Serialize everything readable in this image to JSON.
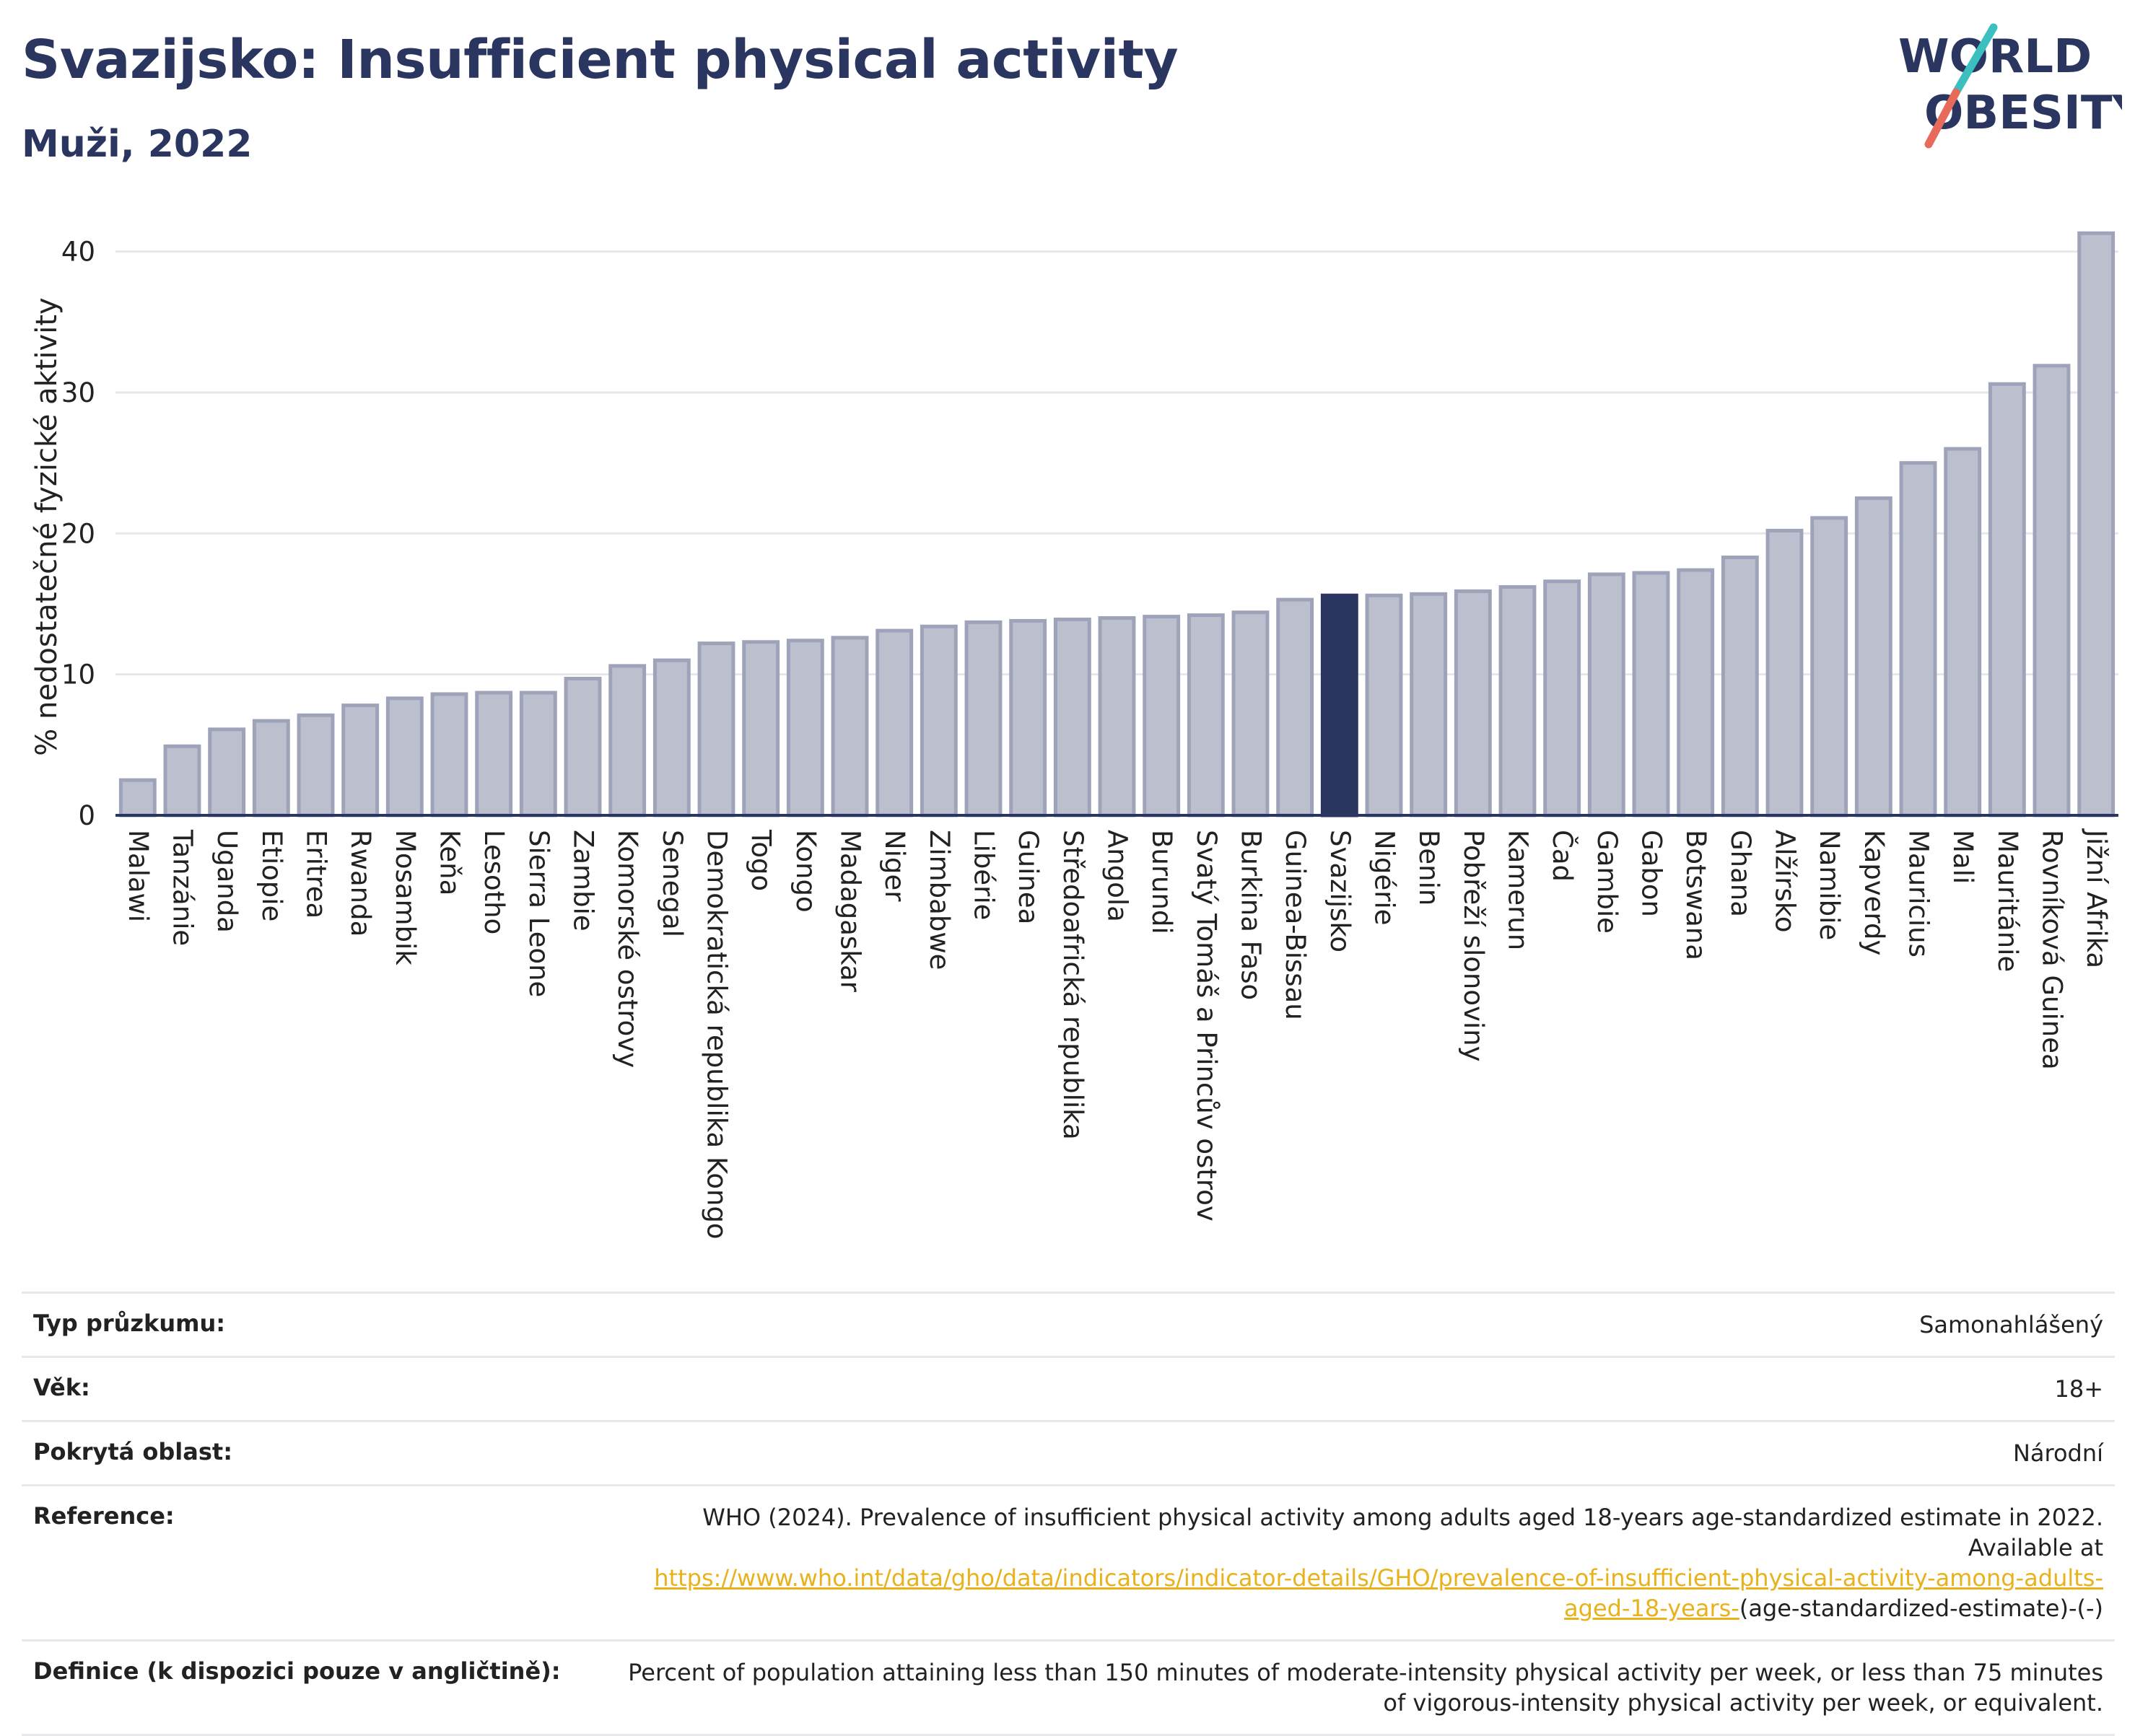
{
  "header": {
    "title": "Svazijsko: Insufficient physical activity",
    "subtitle": "Muži, 2022"
  },
  "logo": {
    "line1": "WORLD",
    "line2": "OBESITY",
    "slash_color_top": "#3bbfbf",
    "slash_color_bottom": "#e76a5a"
  },
  "colors": {
    "bar": "#bcc0ce",
    "bar_edge": "#9ea3ba",
    "highlight": "#2a3560",
    "grid": "#e6e7ec",
    "axis": "#2a3560"
  },
  "chart_data": {
    "type": "bar",
    "ylabel": "% nedostatečné fyzické aktivity",
    "ylim": [
      0,
      43
    ],
    "yticks": [
      0,
      10,
      20,
      30,
      40
    ],
    "grid": true,
    "highlight": "Svazijsko",
    "categories": [
      "Malawi",
      "Tanzánie",
      "Uganda",
      "Etiopie",
      "Eritrea",
      "Rwanda",
      "Mosambik",
      "Keňa",
      "Lesotho",
      "Sierra Leone",
      "Zambie",
      "Komorské ostrovy",
      "Senegal",
      "Demokratická republika Kongo",
      "Togo",
      "Kongo",
      "Madagaskar",
      "Niger",
      "Zimbabwe",
      "Libérie",
      "Guinea",
      "Středoafrická republika",
      "Angola",
      "Burundi",
      "Svatý Tomáš a Princův ostrov",
      "Burkina Faso",
      "Guinea-Bissau",
      "Svazijsko",
      "Nigérie",
      "Benin",
      "Pobřeží slonoviny",
      "Kamerun",
      "Čad",
      "Gambie",
      "Gabon",
      "Botswana",
      "Ghana",
      "Alžírsko",
      "Namibie",
      "Kapverdy",
      "Mauricius",
      "Mali",
      "Mauritánie",
      "Rovníková Guinea",
      "Jižní Afrika"
    ],
    "values": [
      2.5,
      4.9,
      6.1,
      6.7,
      7.1,
      7.8,
      8.3,
      8.6,
      8.7,
      8.7,
      9.7,
      10.6,
      11.0,
      12.2,
      12.3,
      12.4,
      12.6,
      13.1,
      13.4,
      13.7,
      13.8,
      13.9,
      14.0,
      14.1,
      14.2,
      14.4,
      15.3,
      15.6,
      15.6,
      15.7,
      15.9,
      16.2,
      16.6,
      17.1,
      17.2,
      17.4,
      18.3,
      20.2,
      21.1,
      22.5,
      25.0,
      26.0,
      30.6,
      31.9,
      41.3
    ]
  },
  "info": {
    "rows": [
      {
        "label": "Typ průzkumu:",
        "value": "Samonahlášený"
      },
      {
        "label": "Věk:",
        "value": "18+"
      },
      {
        "label": "Pokrytá oblast:",
        "value": "Národní"
      }
    ],
    "reference": {
      "label": "Reference:",
      "text_before": "WHO (2024). Prevalence of insufficient physical activity among adults aged 18-years age-standardized estimate in 2022. Available at",
      "link": "https://www.who.int/data/gho/data/indicators/indicator-details/GHO/prevalence-of-insufficient-physical-activity-among-adults-aged-18-years-",
      "text_after": "(age-standardized-estimate)-(-)"
    },
    "definition": {
      "label": "Definice (k dispozici pouze v angličtině):",
      "value": "Percent of population attaining less than 150 minutes of moderate-intensity physical activity per week, or less than 75 minutes of vigorous-intensity physical activity per week, or equivalent."
    }
  }
}
